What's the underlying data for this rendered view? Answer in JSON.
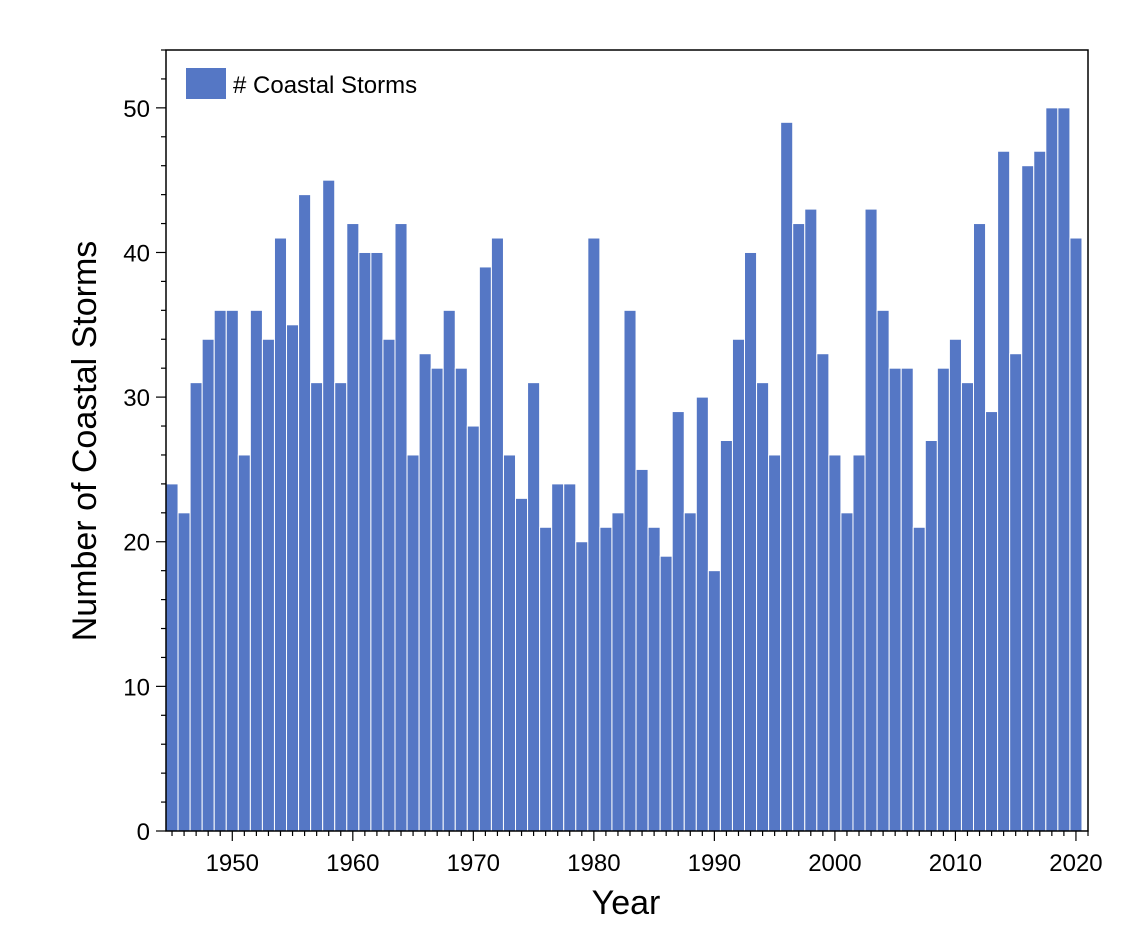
{
  "chart_data": {
    "type": "bar",
    "xlabel": "Year",
    "ylabel": "Number of Coastal Storms",
    "xlim": [
      1944.5,
      2021
    ],
    "ylim": [
      0,
      54
    ],
    "xticks": [
      1950,
      1960,
      1970,
      1980,
      1990,
      2000,
      2010,
      2020
    ],
    "yticks": [
      0,
      10,
      20,
      30,
      40,
      50
    ],
    "legend": {
      "placement": "top-left"
    },
    "grid": false,
    "series": [
      {
        "name": "# Coastal Storms",
        "color": "#5577c5",
        "x": [
          1945,
          1946,
          1947,
          1948,
          1949,
          1950,
          1951,
          1952,
          1953,
          1954,
          1955,
          1956,
          1957,
          1958,
          1959,
          1960,
          1961,
          1962,
          1963,
          1964,
          1965,
          1966,
          1967,
          1968,
          1969,
          1970,
          1971,
          1972,
          1973,
          1974,
          1975,
          1976,
          1977,
          1978,
          1979,
          1980,
          1981,
          1982,
          1983,
          1984,
          1985,
          1986,
          1987,
          1988,
          1989,
          1990,
          1991,
          1992,
          1993,
          1994,
          1995,
          1996,
          1997,
          1998,
          1999,
          2000,
          2001,
          2002,
          2003,
          2004,
          2005,
          2006,
          2007,
          2008,
          2009,
          2010,
          2011,
          2012,
          2013,
          2014,
          2015,
          2016,
          2017,
          2018,
          2019,
          2020
        ],
        "values": [
          24,
          22,
          31,
          34,
          36,
          36,
          26,
          36,
          34,
          41,
          35,
          44,
          31,
          45,
          31,
          42,
          40,
          40,
          34,
          42,
          26,
          33,
          32,
          36,
          32,
          28,
          39,
          41,
          26,
          23,
          31,
          21,
          24,
          24,
          20,
          41,
          21,
          22,
          36,
          25,
          21,
          19,
          29,
          22,
          30,
          18,
          27,
          34,
          40,
          31,
          26,
          49,
          42,
          43,
          33,
          26,
          22,
          26,
          43,
          36,
          32,
          32,
          21,
          27,
          32,
          34,
          31,
          42,
          29,
          47,
          33,
          46,
          47,
          50,
          50,
          41
        ]
      }
    ]
  }
}
